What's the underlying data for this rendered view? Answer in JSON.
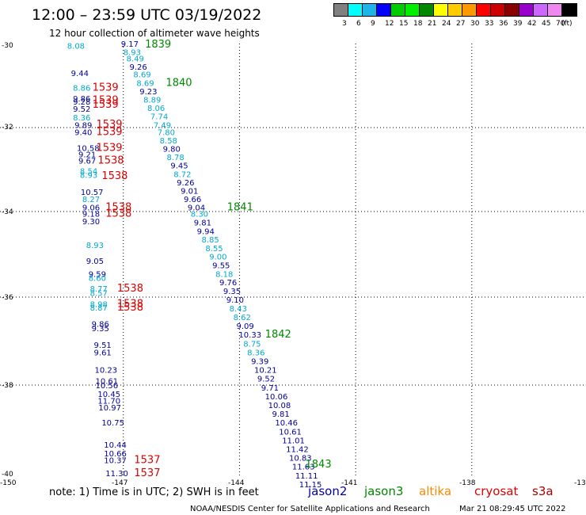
{
  "header": {
    "title": "12:00 – 23:59 UTC 03/19/2022",
    "subtitle": "12 hour collection of altimeter wave heights"
  },
  "colorbar": {
    "colors": [
      "#808080",
      "#00ffff",
      "#1fb4e8",
      "#0000ff",
      "#00cc00",
      "#00ee00",
      "#008800",
      "#ffff00",
      "#ffcc00",
      "#ff9900",
      "#ff0000",
      "#cc0000",
      "#880000",
      "#9900cc",
      "#cc66ff",
      "#ee88ee",
      "#000000"
    ],
    "labels": [
      "3",
      "6",
      "9",
      "12",
      "15",
      "18",
      "21",
      "24",
      "27",
      "30",
      "33",
      "36",
      "39",
      "42",
      "45",
      "70"
    ],
    "unit": "(ft)"
  },
  "axes": {
    "y_labels": [
      "-30",
      "-32",
      "-34",
      "-36",
      "-38",
      "-40"
    ],
    "x_labels": [
      "-150",
      "-147",
      "-144",
      "-141",
      "-138",
      "-13"
    ]
  },
  "map_data": {
    "series": [
      {
        "name": "jason2",
        "color": "#0000aa"
      },
      {
        "name": "jason3",
        "color": "#008800"
      },
      {
        "name": "altika",
        "color": "#ff8800"
      },
      {
        "name": "cryosat",
        "color": "#dd0000"
      },
      {
        "name": "s3a",
        "color": "#aa0000"
      }
    ],
    "east_track": [
      {
        "t": "9.17",
        "c": "#000099",
        "lon": -147.06,
        "lat": -30.0
      },
      {
        "t": "8.93",
        "c": "#00aacc",
        "lon": -147.0,
        "lat": -30.2
      },
      {
        "t": "8.49",
        "c": "#00aacc",
        "lon": -146.92,
        "lat": -30.35
      },
      {
        "t": "9.26",
        "c": "#000099",
        "lon": -146.84,
        "lat": -30.55
      },
      {
        "t": "8.69",
        "c": "#00aacc",
        "lon": -146.74,
        "lat": -30.73
      },
      {
        "t": "8.69",
        "c": "#00aacc",
        "lon": -146.66,
        "lat": -30.93
      },
      {
        "t": "9.23",
        "c": "#000099",
        "lon": -146.58,
        "lat": -31.13
      },
      {
        "t": "8.89",
        "c": "#00aacc",
        "lon": -146.48,
        "lat": -31.33
      },
      {
        "t": "8.06",
        "c": "#00aacc",
        "lon": -146.38,
        "lat": -31.53
      },
      {
        "t": "7.74",
        "c": "#00aacc",
        "lon": -146.3,
        "lat": -31.73
      },
      {
        "t": "7.49",
        "c": "#00aacc",
        "lon": -146.22,
        "lat": -31.93
      },
      {
        "t": "7.80",
        "c": "#00aacc",
        "lon": -146.12,
        "lat": -32.1
      },
      {
        "t": "8.58",
        "c": "#00aacc",
        "lon": -146.06,
        "lat": -32.3
      },
      {
        "t": "9.80",
        "c": "#000099",
        "lon": -145.98,
        "lat": -32.5
      },
      {
        "t": "8.78",
        "c": "#00aacc",
        "lon": -145.88,
        "lat": -32.7
      },
      {
        "t": "9.45",
        "c": "#000099",
        "lon": -145.78,
        "lat": -32.9
      },
      {
        "t": "8.72",
        "c": "#00aacc",
        "lon": -145.7,
        "lat": -33.1
      },
      {
        "t": "9.26",
        "c": "#000099",
        "lon": -145.62,
        "lat": -33.3
      },
      {
        "t": "9.01",
        "c": "#000099",
        "lon": -145.52,
        "lat": -33.5
      },
      {
        "t": "9.66",
        "c": "#000099",
        "lon": -145.44,
        "lat": -33.7
      },
      {
        "t": "9.04",
        "c": "#000099",
        "lon": -145.34,
        "lat": -33.9
      },
      {
        "t": "8.30",
        "c": "#00aacc",
        "lon": -145.26,
        "lat": -34.05
      },
      {
        "t": "9.81",
        "c": "#000099",
        "lon": -145.18,
        "lat": -34.25
      },
      {
        "t": "9.94",
        "c": "#000099",
        "lon": -145.1,
        "lat": -34.45
      },
      {
        "t": "8.85",
        "c": "#00aacc",
        "lon": -144.98,
        "lat": -34.65
      },
      {
        "t": "8.55",
        "c": "#00aacc",
        "lon": -144.88,
        "lat": -34.85
      },
      {
        "t": "9.00",
        "c": "#00aacc",
        "lon": -144.78,
        "lat": -35.05
      },
      {
        "t": "9.55",
        "c": "#000099",
        "lon": -144.7,
        "lat": -35.25
      },
      {
        "t": "8.18",
        "c": "#00aacc",
        "lon": -144.62,
        "lat": -35.45
      },
      {
        "t": "9.76",
        "c": "#000099",
        "lon": -144.52,
        "lat": -35.65
      },
      {
        "t": "9.35",
        "c": "#000099",
        "lon": -144.42,
        "lat": -35.85
      },
      {
        "t": "9.10",
        "c": "#000099",
        "lon": -144.34,
        "lat": -36.05
      },
      {
        "t": "8.43",
        "c": "#00aacc",
        "lon": -144.26,
        "lat": -36.25
      },
      {
        "t": "8.62",
        "c": "#00aacc",
        "lon": -144.16,
        "lat": -36.45
      },
      {
        "t": "9.09",
        "c": "#000099",
        "lon": -144.08,
        "lat": -36.65
      },
      {
        "t": "10.33",
        "c": "#000099",
        "lon": -144.02,
        "lat": -36.85
      },
      {
        "t": "8.75",
        "c": "#00aacc",
        "lon": -143.9,
        "lat": -37.05
      },
      {
        "t": "8.36",
        "c": "#00aacc",
        "lon": -143.8,
        "lat": -37.25
      },
      {
        "t": "9.39",
        "c": "#000099",
        "lon": -143.7,
        "lat": -37.45
      },
      {
        "t": "10.21",
        "c": "#000099",
        "lon": -143.62,
        "lat": -37.65
      },
      {
        "t": "9.52",
        "c": "#000099",
        "lon": -143.54,
        "lat": -37.85
      },
      {
        "t": "9.71",
        "c": "#000099",
        "lon": -143.44,
        "lat": -38.05
      },
      {
        "t": "10.06",
        "c": "#000099",
        "lon": -143.34,
        "lat": -38.25
      },
      {
        "t": "10.08",
        "c": "#000099",
        "lon": -143.26,
        "lat": -38.45
      },
      {
        "t": "9.81",
        "c": "#000099",
        "lon": -143.16,
        "lat": -38.65
      },
      {
        "t": "10.46",
        "c": "#000099",
        "lon": -143.08,
        "lat": -38.85
      },
      {
        "t": "10.61",
        "c": "#000099",
        "lon": -142.98,
        "lat": -39.05
      },
      {
        "t": "11.01",
        "c": "#000099",
        "lon": -142.9,
        "lat": -39.25
      },
      {
        "t": "11.42",
        "c": "#000099",
        "lon": -142.8,
        "lat": -39.45
      },
      {
        "t": "10.83",
        "c": "#000099",
        "lon": -142.72,
        "lat": -39.65
      },
      {
        "t": "11.63",
        "c": "#000099",
        "lon": -142.64,
        "lat": -39.85
      },
      {
        "t": "11.11",
        "c": "#000099",
        "lon": -142.56,
        "lat": -40.05
      },
      {
        "t": "11.15",
        "c": "#000099",
        "lon": -142.46,
        "lat": -40.25
      }
    ],
    "west_track": [
      {
        "t": "8.08",
        "c": "#00aacc",
        "lon": -148.45,
        "lat": -30.05
      },
      {
        "t": "9.44",
        "c": "#000099",
        "lon": -148.35,
        "lat": -30.7
      },
      {
        "t": "8.86",
        "c": "#00aacc",
        "lon": -148.3,
        "lat": -31.05
      },
      {
        "t": "9.86",
        "c": "#000099",
        "lon": -148.3,
        "lat": -31.3
      },
      {
        "t": "9.28",
        "c": "#000099",
        "lon": -148.3,
        "lat": -31.38
      },
      {
        "t": "9.52",
        "c": "#000099",
        "lon": -148.3,
        "lat": -31.55
      },
      {
        "t": "8.36",
        "c": "#00aacc",
        "lon": -148.3,
        "lat": -31.75
      },
      {
        "t": "9.89",
        "c": "#000099",
        "lon": -148.26,
        "lat": -31.93
      },
      {
        "t": "9.40",
        "c": "#000099",
        "lon": -148.26,
        "lat": -32.1
      },
      {
        "t": "10.58",
        "c": "#000099",
        "lon": -148.2,
        "lat": -32.48
      },
      {
        "t": "9.21",
        "c": "#000099",
        "lon": -148.16,
        "lat": -32.63
      },
      {
        "t": "9.67",
        "c": "#000099",
        "lon": -148.16,
        "lat": -32.78
      },
      {
        "t": "8.54",
        "c": "#00aacc",
        "lon": -148.12,
        "lat": -33.03
      },
      {
        "t": "8.93",
        "c": "#00aacc",
        "lon": -148.12,
        "lat": -33.12
      },
      {
        "t": "10.57",
        "c": "#000099",
        "lon": -148.1,
        "lat": -33.53
      },
      {
        "t": "8.27",
        "c": "#00aacc",
        "lon": -148.06,
        "lat": -33.7
      },
      {
        "t": "9.06",
        "c": "#000099",
        "lon": -148.06,
        "lat": -33.9
      },
      {
        "t": "9.18",
        "c": "#000099",
        "lon": -148.06,
        "lat": -34.05
      },
      {
        "t": "9.30",
        "c": "#000099",
        "lon": -148.06,
        "lat": -34.22
      },
      {
        "t": "8.93",
        "c": "#00aacc",
        "lon": -147.96,
        "lat": -34.78
      },
      {
        "t": "9.05",
        "c": "#000099",
        "lon": -147.96,
        "lat": -35.15
      },
      {
        "t": "9.59",
        "c": "#000099",
        "lon": -147.9,
        "lat": -35.45
      },
      {
        "t": "8.60",
        "c": "#00aacc",
        "lon": -147.9,
        "lat": -35.55
      },
      {
        "t": "8.77",
        "c": "#00aacc",
        "lon": -147.86,
        "lat": -35.8
      },
      {
        "t": "8.57",
        "c": "#00aacc",
        "lon": -147.86,
        "lat": -35.9
      },
      {
        "t": "8.98",
        "c": "#00aacc",
        "lon": -147.86,
        "lat": -36.15
      },
      {
        "t": "8.87",
        "c": "#00aacc",
        "lon": -147.86,
        "lat": -36.23
      },
      {
        "t": "9.86",
        "c": "#000099",
        "lon": -147.82,
        "lat": -36.6
      },
      {
        "t": "9.35",
        "c": "#000099",
        "lon": -147.82,
        "lat": -36.7
      },
      {
        "t": "9.51",
        "c": "#000099",
        "lon": -147.76,
        "lat": -37.08
      },
      {
        "t": "9.61",
        "c": "#000099",
        "lon": -147.76,
        "lat": -37.25
      },
      {
        "t": "10.23",
        "c": "#000099",
        "lon": -147.74,
        "lat": -37.65
      },
      {
        "t": "10.61",
        "c": "#000099",
        "lon": -147.72,
        "lat": -37.9
      },
      {
        "t": "10.56",
        "c": "#000099",
        "lon": -147.72,
        "lat": -38.0
      },
      {
        "t": "10.45",
        "c": "#000099",
        "lon": -147.66,
        "lat": -38.2
      },
      {
        "t": "11.70",
        "c": "#000099",
        "lon": -147.66,
        "lat": -38.35
      },
      {
        "t": "10.97",
        "c": "#000099",
        "lon": -147.64,
        "lat": -38.5
      },
      {
        "t": "10.75",
        "c": "#000099",
        "lon": -147.56,
        "lat": -38.85
      },
      {
        "t": "10.44",
        "c": "#000099",
        "lon": -147.5,
        "lat": -39.35
      },
      {
        "t": "10.66",
        "c": "#000099",
        "lon": -147.5,
        "lat": -39.55
      },
      {
        "t": "10.37",
        "c": "#000099",
        "lon": -147.5,
        "lat": -39.7
      },
      {
        "t": "11.30",
        "c": "#000099",
        "lon": -147.46,
        "lat": -40.0
      }
    ],
    "pass_labels": [
      {
        "t": "1839",
        "c": "#008800",
        "lon": -146.44,
        "lat": -30.02
      },
      {
        "t": "1840",
        "c": "#008800",
        "lon": -145.9,
        "lat": -30.93
      },
      {
        "t": "1841",
        "c": "#008800",
        "lon": -144.32,
        "lat": -33.9
      },
      {
        "t": "1842",
        "c": "#008800",
        "lon": -143.34,
        "lat": -36.85
      },
      {
        "t": "1843",
        "c": "#008800",
        "lon": -142.3,
        "lat": -39.8
      },
      {
        "t": "1539",
        "c": "#dd0000",
        "lon": -147.8,
        "lat": -31.05
      },
      {
        "t": "1539",
        "c": "#dd0000",
        "lon": -147.8,
        "lat": -31.35
      },
      {
        "t": "1539",
        "c": "#dd0000",
        "lon": -147.8,
        "lat": -31.45
      },
      {
        "t": "1539",
        "c": "#dd0000",
        "lon": -147.7,
        "lat": -31.92
      },
      {
        "t": "1539",
        "c": "#dd0000",
        "lon": -147.7,
        "lat": -32.1
      },
      {
        "t": "1539",
        "c": "#dd0000",
        "lon": -147.7,
        "lat": -32.48
      },
      {
        "t": "1538",
        "c": "#dd0000",
        "lon": -147.66,
        "lat": -32.78
      },
      {
        "t": "1538",
        "c": "#dd0000",
        "lon": -147.56,
        "lat": -33.15
      },
      {
        "t": "1538",
        "c": "#dd0000",
        "lon": -147.46,
        "lat": -33.9
      },
      {
        "t": "1538",
        "c": "#dd0000",
        "lon": -147.46,
        "lat": -34.05
      },
      {
        "t": "1538",
        "c": "#dd0000",
        "lon": -147.16,
        "lat": -35.8
      },
      {
        "t": "1538",
        "c": "#dd0000",
        "lon": -147.16,
        "lat": -36.15
      },
      {
        "t": "1538",
        "c": "#dd0000",
        "lon": -147.16,
        "lat": -36.23
      },
      {
        "t": "1537",
        "c": "#dd0000",
        "lon": -146.72,
        "lat": -39.7
      },
      {
        "t": "1537",
        "c": "#dd0000",
        "lon": -146.72,
        "lat": -40.0
      }
    ]
  },
  "footer": {
    "note": "note: 1) Time is in UTC; 2) SWH is in feet",
    "credit": "NOAA/NESDIS Center for Satellite Applications and Research",
    "timestamp": "Mar 21 08:29:45 UTC 2022"
  }
}
